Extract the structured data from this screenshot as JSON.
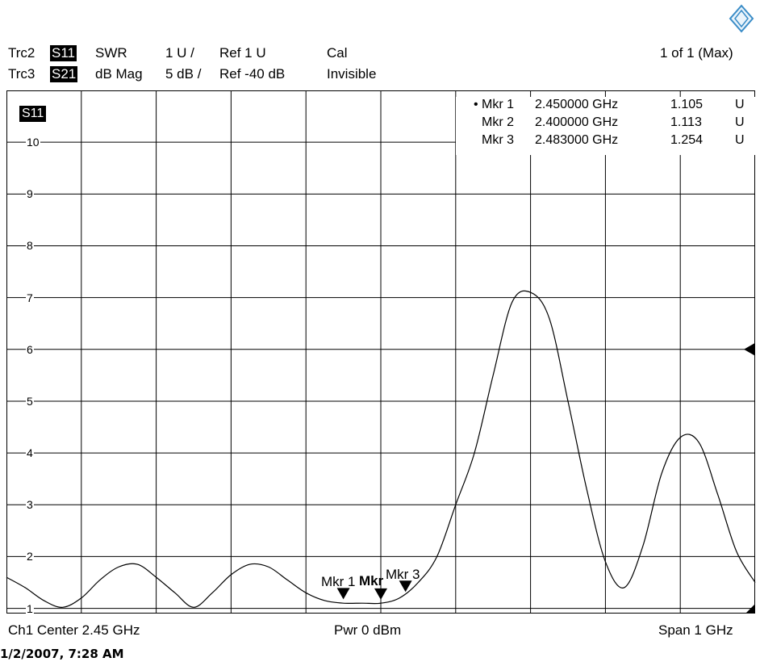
{
  "header": {
    "trc2": {
      "name": "Trc2",
      "param": "S11",
      "format": "SWR",
      "scale": "1 U /",
      "ref": "Ref 1 U",
      "cal": "Cal"
    },
    "trc3": {
      "name": "Trc3",
      "param": "S21",
      "format": "dB Mag",
      "scale": "5 dB /",
      "ref": "Ref -40 dB",
      "cal": "Invisible"
    },
    "page": "1 of 1 (Max)"
  },
  "trace_tag": "S11",
  "markers": [
    {
      "dot": "•",
      "label": "Mkr 1",
      "freq": "2.450000 GHz",
      "value": "1.105",
      "unit": "U"
    },
    {
      "dot": "",
      "label": "Mkr 2",
      "freq": "2.400000 GHz",
      "value": "1.113",
      "unit": "U"
    },
    {
      "dot": "",
      "label": "Mkr 3",
      "freq": "2.483000 GHz",
      "value": "1.254",
      "unit": "U"
    }
  ],
  "marker_labels": {
    "m1": "Mkr 1",
    "m2": "Mkr",
    "m3": "Mkr 3"
  },
  "footer": {
    "center": "Ch1  Center  2.45 GHz",
    "power": "Pwr  0 dBm",
    "span": "Span  1 GHz",
    "timestamp": "1/2/2007, 7:28 AM"
  },
  "colors": {
    "trace": "#000000",
    "grid": "#000000",
    "background": "#ffffff"
  },
  "chart_data": {
    "type": "line",
    "xlim": [
      1.95,
      2.95
    ],
    "ylim": [
      0.9,
      11.0
    ],
    "y_ticks": [
      1,
      2,
      3,
      4,
      5,
      6,
      7,
      8,
      9,
      10
    ],
    "reference_level": 6,
    "series": [
      {
        "x": [
          1.95,
          1.975,
          2.0,
          2.025,
          2.05,
          2.075,
          2.1,
          2.125,
          2.15,
          2.175,
          2.2,
          2.225,
          2.25,
          2.275,
          2.3,
          2.325,
          2.35,
          2.375,
          2.4,
          2.425,
          2.45,
          2.475,
          2.5,
          2.525,
          2.55,
          2.575,
          2.6,
          2.625,
          2.65,
          2.675,
          2.7,
          2.725,
          2.75,
          2.775,
          2.8,
          2.825,
          2.85,
          2.875,
          2.9,
          2.925,
          2.95
        ],
        "y": [
          1.6,
          1.4,
          1.15,
          1.02,
          1.2,
          1.55,
          1.8,
          1.85,
          1.6,
          1.3,
          1.02,
          1.3,
          1.65,
          1.85,
          1.8,
          1.55,
          1.3,
          1.15,
          1.1,
          1.1,
          1.1,
          1.2,
          1.5,
          2.0,
          3.0,
          4.0,
          5.5,
          6.9,
          7.1,
          6.6,
          5.0,
          3.3,
          1.9,
          1.4,
          2.2,
          3.6,
          4.3,
          4.2,
          3.2,
          2.1,
          1.5
        ]
      }
    ],
    "marker_points": [
      {
        "name": "Mkr 1",
        "x": 2.45,
        "y": 1.105
      },
      {
        "name": "Mkr 2",
        "x": 2.4,
        "y": 1.113
      },
      {
        "name": "Mkr 3",
        "x": 2.483,
        "y": 1.254
      }
    ]
  }
}
